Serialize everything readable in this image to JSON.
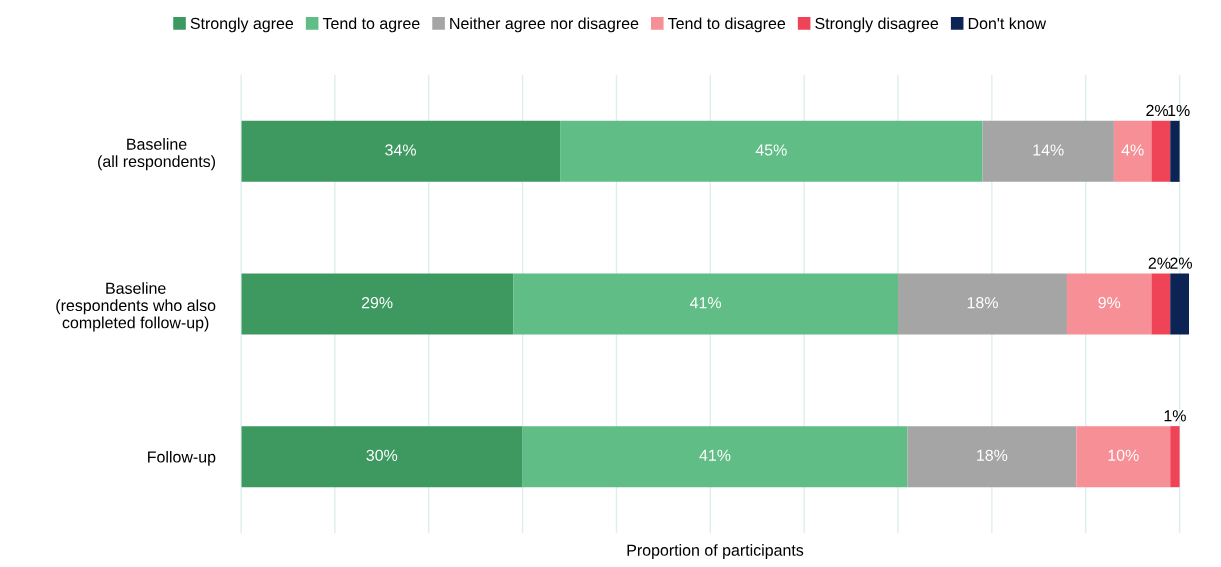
{
  "chart_data": {
    "type": "bar",
    "orientation": "horizontal",
    "stacked": true,
    "xlabel": "Proportion of participants",
    "categories": [
      "Baseline\n(all respondents)",
      "Baseline\n(respondents who also\ncompleted follow-up)",
      "Follow-up"
    ],
    "series": [
      {
        "name": "Strongly agree",
        "color": "#3d9960",
        "values": [
          34,
          29,
          30
        ],
        "value_labels": [
          "34%",
          "29%",
          "30%"
        ]
      },
      {
        "name": "Tend to agree",
        "color": "#5fbd85",
        "values": [
          45,
          41,
          41
        ],
        "value_labels": [
          "45%",
          "41%",
          "41%"
        ]
      },
      {
        "name": "Neither agree nor disagree",
        "color": "#a5a5a5",
        "values": [
          14,
          18,
          18
        ],
        "value_labels": [
          "14%",
          "18%",
          "18%"
        ]
      },
      {
        "name": "Tend to disagree",
        "color": "#f78f96",
        "values": [
          4,
          9,
          10
        ],
        "value_labels": [
          "4%",
          "9%",
          "10%"
        ]
      },
      {
        "name": "Strongly disagree",
        "color": "#ef4458",
        "values": [
          2,
          2,
          1
        ],
        "value_labels": [
          "2%",
          "2%",
          "1%"
        ]
      },
      {
        "name": "Don't know",
        "color": "#0b2454",
        "values": [
          1,
          2,
          null
        ],
        "value_labels": [
          "1%",
          "2%",
          null
        ]
      }
    ],
    "xlim": [
      0,
      101
    ],
    "xticks": [
      {
        "value": 0,
        "label": null
      },
      {
        "value": 10,
        "label": null
      },
      {
        "value": 20,
        "label": null
      },
      {
        "value": 30,
        "label": null
      },
      {
        "value": 40,
        "label": null
      },
      {
        "value": 50,
        "label": null
      },
      {
        "value": 60,
        "label": null
      },
      {
        "value": 70,
        "label": null
      },
      {
        "value": 80,
        "label": null
      },
      {
        "value": 90,
        "label": null
      },
      {
        "value": 100,
        "label": null
      }
    ],
    "tick_labels": "y",
    "grid": "x",
    "legend": "top"
  }
}
